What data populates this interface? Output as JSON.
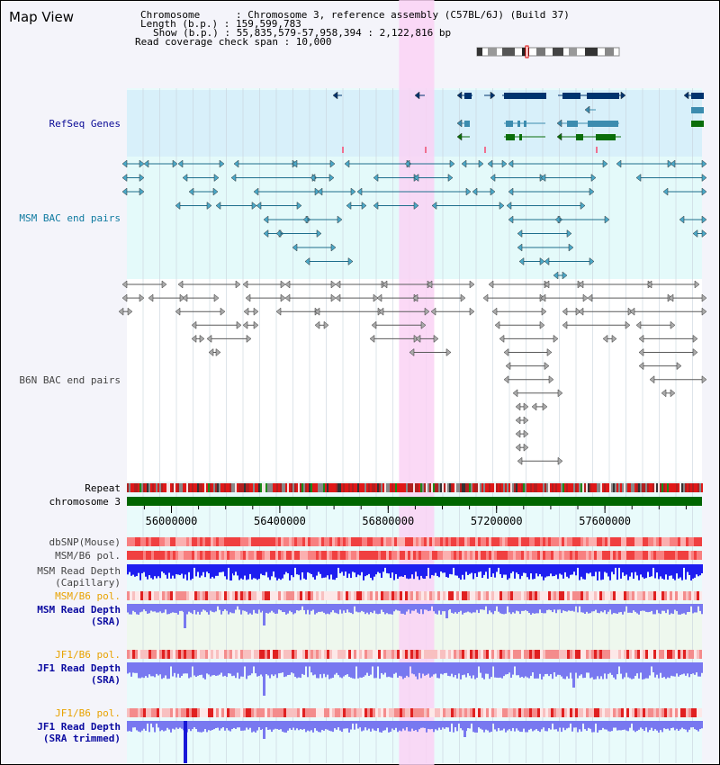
{
  "header": {
    "title": "Map View",
    "info_lines": [
      "Chromosome      : Chromosome 3, reference assembly (C57BL/6J) (Build 37)",
      "Length (b.p.) : 159,599,783",
      "Show (b.p.) : 55,835,579-57,958,394 : 2,122,816 bp",
      "Read coverage check span : 10,000"
    ]
  },
  "tracks": {
    "refseq": "RefSeq Genes",
    "msm_bac": "MSM BAC end pairs",
    "b6n_bac": "B6N BAC end pairs",
    "repeat": "Repeat",
    "chromosome": "chromosome 3",
    "dbsnp": "dbSNP(Mouse)",
    "msm_b6_pol_1": "MSM/B6 pol.",
    "msm_depth_cap_1": "MSM Read Depth",
    "msm_depth_cap_2": "(Capillary)",
    "msm_b6_pol_2": "MSM/B6 pol.",
    "msm_depth_sra_1": "MSM Read Depth",
    "msm_depth_sra_2": "(SRA)",
    "jf1_b6_pol_1": "JF1/B6 pol.",
    "jf1_depth_sra_1": "JF1 Read Depth",
    "jf1_depth_sra_2": "(SRA)",
    "jf1_b6_pol_2": "JF1/B6 pol.",
    "jf1_depth_trim_1": "JF1 Read Depth",
    "jf1_depth_trim_2": "(SRA trimmed)"
  },
  "axis": {
    "ticks": [
      "56000000",
      "56400000",
      "56800000",
      "57200000",
      "57600000"
    ],
    "tick_values": [
      56000000,
      56400000,
      56800000,
      57200000,
      57600000
    ],
    "range": [
      55835579,
      57958394
    ]
  },
  "highlight": {
    "start": 56840000,
    "end": 56970000
  },
  "colors": {
    "refseq_bg": "#d8f0fa",
    "bac_bg": "#e4fafa",
    "highlight": "#fad2f5",
    "chromosome": "#006600",
    "refseq_navy": "#00336e",
    "refseq_teal": "#3c8caf",
    "refseq_green": "#0a6e0a",
    "msm_bac": "#1e6e8c",
    "b6n_bac": "#5a5a5a",
    "depth_capillary": "#1e1ef0",
    "depth_sra": "#7878f0",
    "depth_sra_bg": "#eef8ee",
    "depth_light_bg": "#e4fafa"
  }
}
